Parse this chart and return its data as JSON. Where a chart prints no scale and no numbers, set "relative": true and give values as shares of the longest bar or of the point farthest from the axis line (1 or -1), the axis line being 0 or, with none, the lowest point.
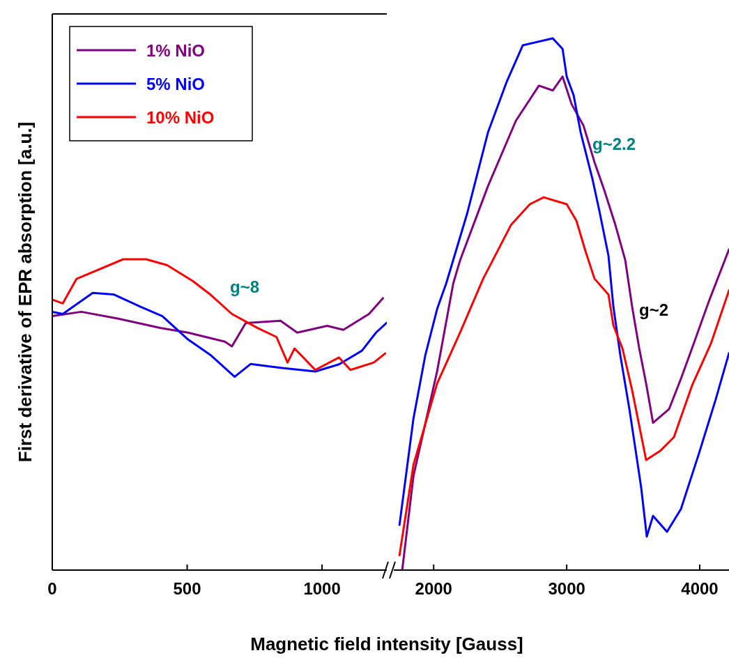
{
  "chart_data": [
    {
      "type": "line",
      "relative": true,
      "ylabel": "First derivative of EPR absorption [a.u.]",
      "xlabel": "Magnetic field intensity [Gauss]",
      "xlim": [
        0,
        1240
      ],
      "xticks": [
        0,
        500,
        1000
      ],
      "legend": "top left",
      "annotations": [
        "g~8"
      ],
      "series": [
        {
          "name": "1% NiO",
          "color": "#800080",
          "x": [
            0,
            108,
            245,
            400,
            503,
            640,
            666,
            717,
            846,
            908,
            1019,
            1079,
            1174,
            1226
          ],
          "values": [
            0.817,
            0.831,
            0.809,
            0.779,
            0.764,
            0.735,
            0.72,
            0.795,
            0.802,
            0.764,
            0.786,
            0.773,
            0.824,
            0.875
          ]
        },
        {
          "name": "5% NiO",
          "color": "#0000ff",
          "x": [
            0,
            39,
            150,
            227,
            330,
            408,
            503,
            588,
            676,
            735,
            846,
            975,
            1063,
            1148,
            1200,
            1239
          ],
          "values": [
            0.831,
            0.824,
            0.892,
            0.887,
            0.846,
            0.817,
            0.742,
            0.691,
            0.622,
            0.663,
            0.651,
            0.639,
            0.662,
            0.706,
            0.764,
            0.795
          ]
        },
        {
          "name": "10% NiO",
          "color": "#ff0000",
          "x": [
            0,
            39,
            90,
            263,
            348,
            426,
            521,
            588,
            666,
            761,
            831,
            872,
            898,
            975,
            1063,
            1105,
            1192,
            1234
          ],
          "values": [
            0.87,
            0.858,
            0.937,
            1.0,
            1.0,
            0.981,
            0.93,
            0.885,
            0.824,
            0.779,
            0.75,
            0.668,
            0.713,
            0.644,
            0.684,
            0.644,
            0.668,
            0.697
          ]
        }
      ]
    },
    {
      "type": "line",
      "relative": true,
      "xlim": [
        1700,
        4220
      ],
      "xticks": [
        2000,
        3000,
        4000
      ],
      "annotations": [
        "g~2.2",
        "g~2"
      ],
      "series": [
        {
          "color": "#800080",
          "x": [
            1764,
            1848,
            2026,
            2147,
            2199,
            2408,
            2618,
            2791,
            2895,
            2969,
            3037,
            3126,
            3209,
            3283,
            3366,
            3440,
            3492,
            3545,
            3597,
            3649,
            3770,
            3859,
            3942,
            4068,
            4220
          ],
          "values": [
            0.001,
            0.177,
            0.374,
            0.539,
            0.583,
            0.722,
            0.845,
            0.911,
            0.902,
            0.928,
            0.876,
            0.836,
            0.767,
            0.714,
            0.649,
            0.583,
            0.495,
            0.417,
            0.351,
            0.277,
            0.303,
            0.36,
            0.417,
            0.505,
            0.603
          ]
        },
        {
          "color": "#0000ff",
          "x": [
            1743,
            1848,
            1937,
            2026,
            2094,
            2251,
            2408,
            2550,
            2670,
            2895,
            2969,
            3000,
            3052,
            3105,
            3194,
            3246,
            3314,
            3351,
            3403,
            3471,
            3508,
            3560,
            3602,
            3649,
            3754,
            3859,
            3995,
            4120,
            4220
          ],
          "values": [
            0.085,
            0.285,
            0.404,
            0.491,
            0.539,
            0.67,
            0.823,
            0.919,
            0.987,
            1.0,
            0.98,
            0.928,
            0.893,
            0.823,
            0.735,
            0.675,
            0.591,
            0.495,
            0.404,
            0.303,
            0.242,
            0.155,
            0.063,
            0.102,
            0.072,
            0.115,
            0.22,
            0.321,
            0.408
          ]
        },
        {
          "color": "#ff0000",
          "x": [
            1743,
            1848,
            2026,
            2199,
            2372,
            2445,
            2581,
            2723,
            2827,
            3000,
            3073,
            3141,
            3209,
            3314,
            3351,
            3419,
            3492,
            3597,
            3702,
            3806,
            3942,
            4084,
            4220
          ],
          "values": [
            0.028,
            0.198,
            0.351,
            0.447,
            0.548,
            0.583,
            0.649,
            0.688,
            0.701,
            0.688,
            0.657,
            0.6,
            0.548,
            0.518,
            0.46,
            0.417,
            0.338,
            0.207,
            0.224,
            0.25,
            0.347,
            0.426,
            0.526
          ]
        }
      ]
    }
  ]
}
